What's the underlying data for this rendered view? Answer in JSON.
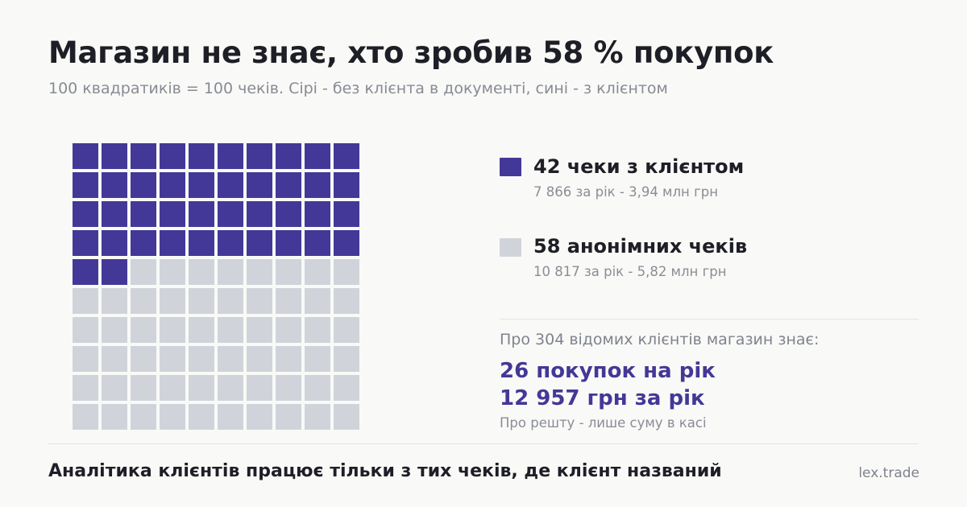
{
  "header": {
    "title": "Магазин не знає, хто зробив 58 % покупок",
    "subtitle": "100 квадратиків = 100 чеків. Сірі - без клієнта в документі, сині - з клієнтом"
  },
  "chart_data": {
    "type": "waffle",
    "rows": 10,
    "cols": 10,
    "series": [
      {
        "name": "42 чеки з клієнтом",
        "value": 42,
        "detail": "7 866 за рік - 3,94 млн грн",
        "color": "#433897"
      },
      {
        "name": "58 анонімних чеків",
        "value": 58,
        "detail": "10 817 за рік - 5,82 млн грн",
        "color": "#d0d4da"
      }
    ]
  },
  "known": {
    "intro": "Про 304 відомих клієнтів магазин знає:",
    "stat1": "26 покупок на рік",
    "stat2": "12 957 грн за рік",
    "note": "Про решту - лише суму в касі"
  },
  "footer": {
    "text": "Аналітика клієнтів працює тільки з тих чеків, де клієнт названий",
    "brand": "lex.trade"
  },
  "colors": {
    "accent": "#433897",
    "grey": "#d0d4da",
    "background": "#f9f9f7"
  }
}
